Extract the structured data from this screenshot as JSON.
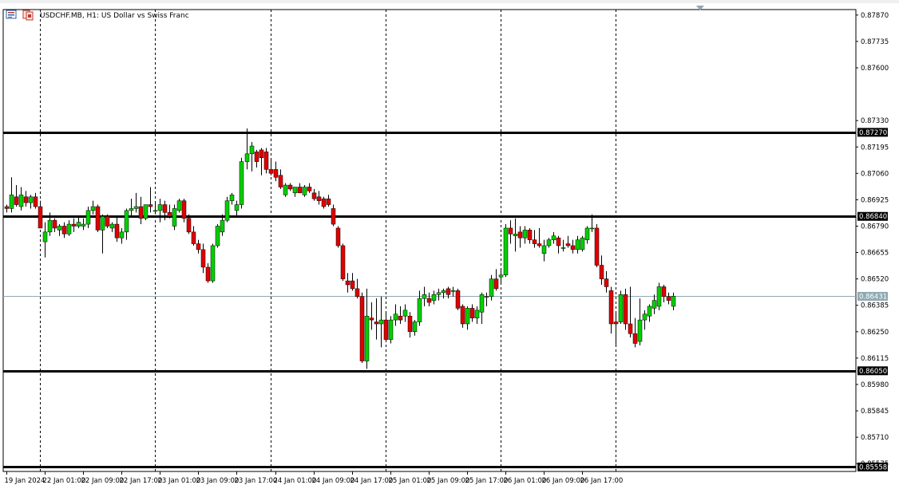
{
  "chart_data": {
    "type": "candlestick",
    "title": "USDCHF.MB, H1:  US Dollar vs Swiss Franc",
    "symbol": "USDCHF.MB",
    "timeframe": "H1",
    "description": "US Dollar vs Swiss Franc",
    "ylim": [
      0.85535,
      0.87898
    ],
    "y_ticks": [
      "0.87870",
      "0.87735",
      "0.87600",
      "0.87330",
      "0.87195",
      "0.87060",
      "0.86925",
      "0.86790",
      "0.86655",
      "0.86520",
      "0.86385",
      "0.86250",
      "0.86115",
      "0.85980",
      "0.85845",
      "0.85710",
      "0.85575"
    ],
    "x_ticks": [
      {
        "label": "19 Jan 2024",
        "bar": 0
      },
      {
        "label": "22 Jan 01:00",
        "bar": 8
      },
      {
        "label": "22 Jan 09:00",
        "bar": 16
      },
      {
        "label": "22 Jan 17:00",
        "bar": 24
      },
      {
        "label": "23 Jan 01:00",
        "bar": 32
      },
      {
        "label": "23 Jan 09:00",
        "bar": 40
      },
      {
        "label": "23 Jan 17:00",
        "bar": 48
      },
      {
        "label": "24 Jan 01:00",
        "bar": 56
      },
      {
        "label": "24 Jan 09:00",
        "bar": 64
      },
      {
        "label": "24 Jan 17:00",
        "bar": 72
      },
      {
        "label": "25 Jan 01:00",
        "bar": 80
      },
      {
        "label": "25 Jan 09:00",
        "bar": 88
      },
      {
        "label": "25 Jan 17:00",
        "bar": 96
      },
      {
        "label": "26 Jan 01:00",
        "bar": 104
      },
      {
        "label": "26 Jan 09:00",
        "bar": 112
      },
      {
        "label": "26 Jan 17:00",
        "bar": 120
      }
    ],
    "day_separators": [
      7,
      31,
      55,
      79,
      103,
      127
    ],
    "horizontal_levels": [
      "0.87270",
      "0.86840",
      "0.86050",
      "0.85558"
    ],
    "current_price": "0.86431",
    "candles": [
      [
        0.8689,
        0.869,
        0.8686,
        0.8688
      ],
      [
        0.8688,
        0.8704,
        0.8686,
        0.8695
      ],
      [
        0.8694,
        0.87,
        0.8689,
        0.869
      ],
      [
        0.8689,
        0.8699,
        0.8687,
        0.8695
      ],
      [
        0.8694,
        0.8697,
        0.8689,
        0.8691
      ],
      [
        0.8691,
        0.8695,
        0.8688,
        0.8694
      ],
      [
        0.8694,
        0.8696,
        0.8688,
        0.8689
      ],
      [
        0.8689,
        0.8692,
        0.8678,
        0.8678
      ],
      [
        0.8671,
        0.8681,
        0.8663,
        0.8676
      ],
      [
        0.8676,
        0.8686,
        0.8674,
        0.8682
      ],
      [
        0.8682,
        0.8683,
        0.8676,
        0.8678
      ],
      [
        0.8677,
        0.868,
        0.8674,
        0.8679
      ],
      [
        0.8679,
        0.8681,
        0.8673,
        0.8675
      ],
      [
        0.8675,
        0.8682,
        0.8674,
        0.868
      ],
      [
        0.868,
        0.8683,
        0.8676,
        0.8679
      ],
      [
        0.8679,
        0.8684,
        0.8678,
        0.8681
      ],
      [
        0.8679,
        0.8683,
        0.8677,
        0.868
      ],
      [
        0.868,
        0.8689,
        0.8678,
        0.8687
      ],
      [
        0.8687,
        0.8692,
        0.8685,
        0.8689
      ],
      [
        0.8689,
        0.869,
        0.8676,
        0.8677
      ],
      [
        0.8677,
        0.8685,
        0.8665,
        0.8684
      ],
      [
        0.8684,
        0.8685,
        0.8678,
        0.8679
      ],
      [
        0.8678,
        0.8681,
        0.8676,
        0.868
      ],
      [
        0.868,
        0.8684,
        0.8671,
        0.8673
      ],
      [
        0.8673,
        0.8678,
        0.867,
        0.8676
      ],
      [
        0.8676,
        0.8688,
        0.8672,
        0.8687
      ],
      [
        0.8687,
        0.8693,
        0.8684,
        0.8688
      ],
      [
        0.8688,
        0.8696,
        0.8686,
        0.8689
      ],
      [
        0.8689,
        0.8694,
        0.868,
        0.8683
      ],
      [
        0.8683,
        0.869,
        0.8682,
        0.869
      ],
      [
        0.869,
        0.8699,
        0.8686,
        0.8689
      ],
      [
        0.8687,
        0.8691,
        0.8685,
        0.8687
      ],
      [
        0.8687,
        0.8693,
        0.8681,
        0.869
      ],
      [
        0.869,
        0.8692,
        0.8682,
        0.8686
      ],
      [
        0.8686,
        0.869,
        0.8683,
        0.8684
      ],
      [
        0.8679,
        0.869,
        0.8677,
        0.8688
      ],
      [
        0.8687,
        0.8693,
        0.8686,
        0.8692
      ],
      [
        0.8692,
        0.8693,
        0.8681,
        0.8683
      ],
      [
        0.8683,
        0.8685,
        0.8675,
        0.8676
      ],
      [
        0.8676,
        0.8679,
        0.8669,
        0.867
      ],
      [
        0.867,
        0.8672,
        0.8665,
        0.8667
      ],
      [
        0.8667,
        0.867,
        0.8655,
        0.8658
      ],
      [
        0.8658,
        0.866,
        0.865,
        0.8651
      ],
      [
        0.8651,
        0.867,
        0.865,
        0.8669
      ],
      [
        0.8669,
        0.868,
        0.8668,
        0.8679
      ],
      [
        0.8676,
        0.8685,
        0.8674,
        0.8682
      ],
      [
        0.8682,
        0.8694,
        0.8681,
        0.8692
      ],
      [
        0.8692,
        0.8696,
        0.869,
        0.8695
      ],
      [
        0.8687,
        0.8692,
        0.8684,
        0.869
      ],
      [
        0.869,
        0.8714,
        0.8688,
        0.8712
      ],
      [
        0.8712,
        0.8729,
        0.8708,
        0.8716
      ],
      [
        0.8716,
        0.8722,
        0.8707,
        0.872
      ],
      [
        0.8717,
        0.8718,
        0.8709,
        0.8712
      ],
      [
        0.8718,
        0.8719,
        0.8705,
        0.8714
      ],
      [
        0.8717,
        0.8719,
        0.8706,
        0.8708
      ],
      [
        0.8708,
        0.8713,
        0.8705,
        0.8706
      ],
      [
        0.8708,
        0.8712,
        0.8702,
        0.8704
      ],
      [
        0.8705,
        0.8708,
        0.8698,
        0.8699
      ],
      [
        0.8695,
        0.8701,
        0.8694,
        0.87
      ],
      [
        0.87,
        0.8701,
        0.8697,
        0.8698
      ],
      [
        0.8696,
        0.8699,
        0.8694,
        0.8699
      ],
      [
        0.8699,
        0.8701,
        0.8696,
        0.8696
      ],
      [
        0.8695,
        0.87,
        0.8694,
        0.8699
      ],
      [
        0.8699,
        0.8701,
        0.8696,
        0.8697
      ],
      [
        0.8696,
        0.8698,
        0.8692,
        0.8693
      ],
      [
        0.8694,
        0.8697,
        0.869,
        0.8692
      ],
      [
        0.8693,
        0.8694,
        0.8688,
        0.8689
      ],
      [
        0.8693,
        0.8695,
        0.8689,
        0.869
      ],
      [
        0.8688,
        0.869,
        0.8679,
        0.868
      ],
      [
        0.8678,
        0.8679,
        0.8668,
        0.8669
      ],
      [
        0.8669,
        0.867,
        0.8651,
        0.8652
      ],
      [
        0.8651,
        0.8655,
        0.8645,
        0.8649
      ],
      [
        0.8651,
        0.8655,
        0.8646,
        0.8647
      ],
      [
        0.8647,
        0.8652,
        0.8642,
        0.8643
      ],
      [
        0.8643,
        0.8645,
        0.8609,
        0.861
      ],
      [
        0.861,
        0.8647,
        0.8606,
        0.8633
      ],
      [
        0.8632,
        0.864,
        0.8626,
        0.8631
      ],
      [
        0.863,
        0.8642,
        0.8621,
        0.8629
      ],
      [
        0.8629,
        0.8643,
        0.8617,
        0.8631
      ],
      [
        0.8631,
        0.8635,
        0.862,
        0.8621
      ],
      [
        0.8621,
        0.8633,
        0.8619,
        0.8631
      ],
      [
        0.8631,
        0.8639,
        0.8628,
        0.8634
      ],
      [
        0.8633,
        0.8638,
        0.8629,
        0.8631
      ],
      [
        0.8633,
        0.8639,
        0.863,
        0.8636
      ],
      [
        0.8633,
        0.8635,
        0.8622,
        0.8625
      ],
      [
        0.8625,
        0.8631,
        0.8623,
        0.863
      ],
      [
        0.863,
        0.8646,
        0.8628,
        0.8642
      ],
      [
        0.8642,
        0.8648,
        0.8638,
        0.8644
      ],
      [
        0.8642,
        0.8645,
        0.8638,
        0.864
      ],
      [
        0.8641,
        0.8646,
        0.8639,
        0.8644
      ],
      [
        0.8644,
        0.8647,
        0.8641,
        0.8645
      ],
      [
        0.8645,
        0.8647,
        0.8642,
        0.8646
      ],
      [
        0.8647,
        0.8648,
        0.8642,
        0.8644
      ],
      [
        0.8646,
        0.8648,
        0.8643,
        0.8646
      ],
      [
        0.8646,
        0.8647,
        0.8636,
        0.8637
      ],
      [
        0.8638,
        0.8639,
        0.8627,
        0.8629
      ],
      [
        0.8629,
        0.8638,
        0.8626,
        0.8637
      ],
      [
        0.8637,
        0.8639,
        0.863,
        0.8632
      ],
      [
        0.8632,
        0.8638,
        0.8629,
        0.8636
      ],
      [
        0.8635,
        0.8645,
        0.8629,
        0.8644
      ],
      [
        0.8643,
        0.8645,
        0.8638,
        0.8643
      ],
      [
        0.8643,
        0.8654,
        0.8641,
        0.8652
      ],
      [
        0.8652,
        0.8657,
        0.8646,
        0.8647
      ],
      [
        0.8653,
        0.8657,
        0.8649,
        0.8654
      ],
      [
        0.8654,
        0.868,
        0.8653,
        0.8678
      ],
      [
        0.8678,
        0.8682,
        0.867,
        0.8675
      ],
      [
        0.8674,
        0.8683,
        0.8666,
        0.8675
      ],
      [
        0.8676,
        0.8679,
        0.8668,
        0.8673
      ],
      [
        0.8673,
        0.8679,
        0.867,
        0.8677
      ],
      [
        0.8677,
        0.8678,
        0.867,
        0.8672
      ],
      [
        0.8672,
        0.8677,
        0.8668,
        0.867
      ],
      [
        0.867,
        0.8678,
        0.8668,
        0.8669
      ],
      [
        0.8665,
        0.8672,
        0.8661,
        0.8669
      ],
      [
        0.8669,
        0.8673,
        0.8668,
        0.8672
      ],
      [
        0.8672,
        0.8676,
        0.867,
        0.8674
      ],
      [
        0.8673,
        0.8674,
        0.8665,
        0.8669
      ],
      [
        0.8668,
        0.8672,
        0.8666,
        0.8668
      ],
      [
        0.867,
        0.8674,
        0.8668,
        0.8669
      ],
      [
        0.8669,
        0.8672,
        0.8665,
        0.8667
      ],
      [
        0.8667,
        0.8674,
        0.8665,
        0.8672
      ],
      [
        0.8667,
        0.8674,
        0.8666,
        0.8673
      ],
      [
        0.8672,
        0.8679,
        0.867,
        0.8678
      ],
      [
        0.8678,
        0.8685,
        0.8676,
        0.8678
      ],
      [
        0.8678,
        0.868,
        0.8658,
        0.8659
      ],
      [
        0.8659,
        0.8664,
        0.8649,
        0.8652
      ],
      [
        0.8652,
        0.8656,
        0.8645,
        0.8648
      ],
      [
        0.8646,
        0.8648,
        0.8624,
        0.8629
      ],
      [
        0.863,
        0.8635,
        0.8618,
        0.8629
      ],
      [
        0.863,
        0.8646,
        0.8629,
        0.8644
      ],
      [
        0.8644,
        0.8647,
        0.8626,
        0.8629
      ],
      [
        0.8629,
        0.8648,
        0.8622,
        0.8624
      ],
      [
        0.8624,
        0.8632,
        0.8617,
        0.8619
      ],
      [
        0.862,
        0.8642,
        0.8618,
        0.8631
      ],
      [
        0.8631,
        0.8636,
        0.8626,
        0.8634
      ],
      [
        0.8633,
        0.8639,
        0.863,
        0.8638
      ],
      [
        0.8637,
        0.8644,
        0.8634,
        0.8641
      ],
      [
        0.8638,
        0.865,
        0.8636,
        0.8648
      ],
      [
        0.8648,
        0.8649,
        0.864,
        0.8643
      ],
      [
        0.8643,
        0.8645,
        0.8639,
        0.8641
      ],
      [
        0.8638,
        0.8645,
        0.8636,
        0.86431
      ]
    ]
  }
}
